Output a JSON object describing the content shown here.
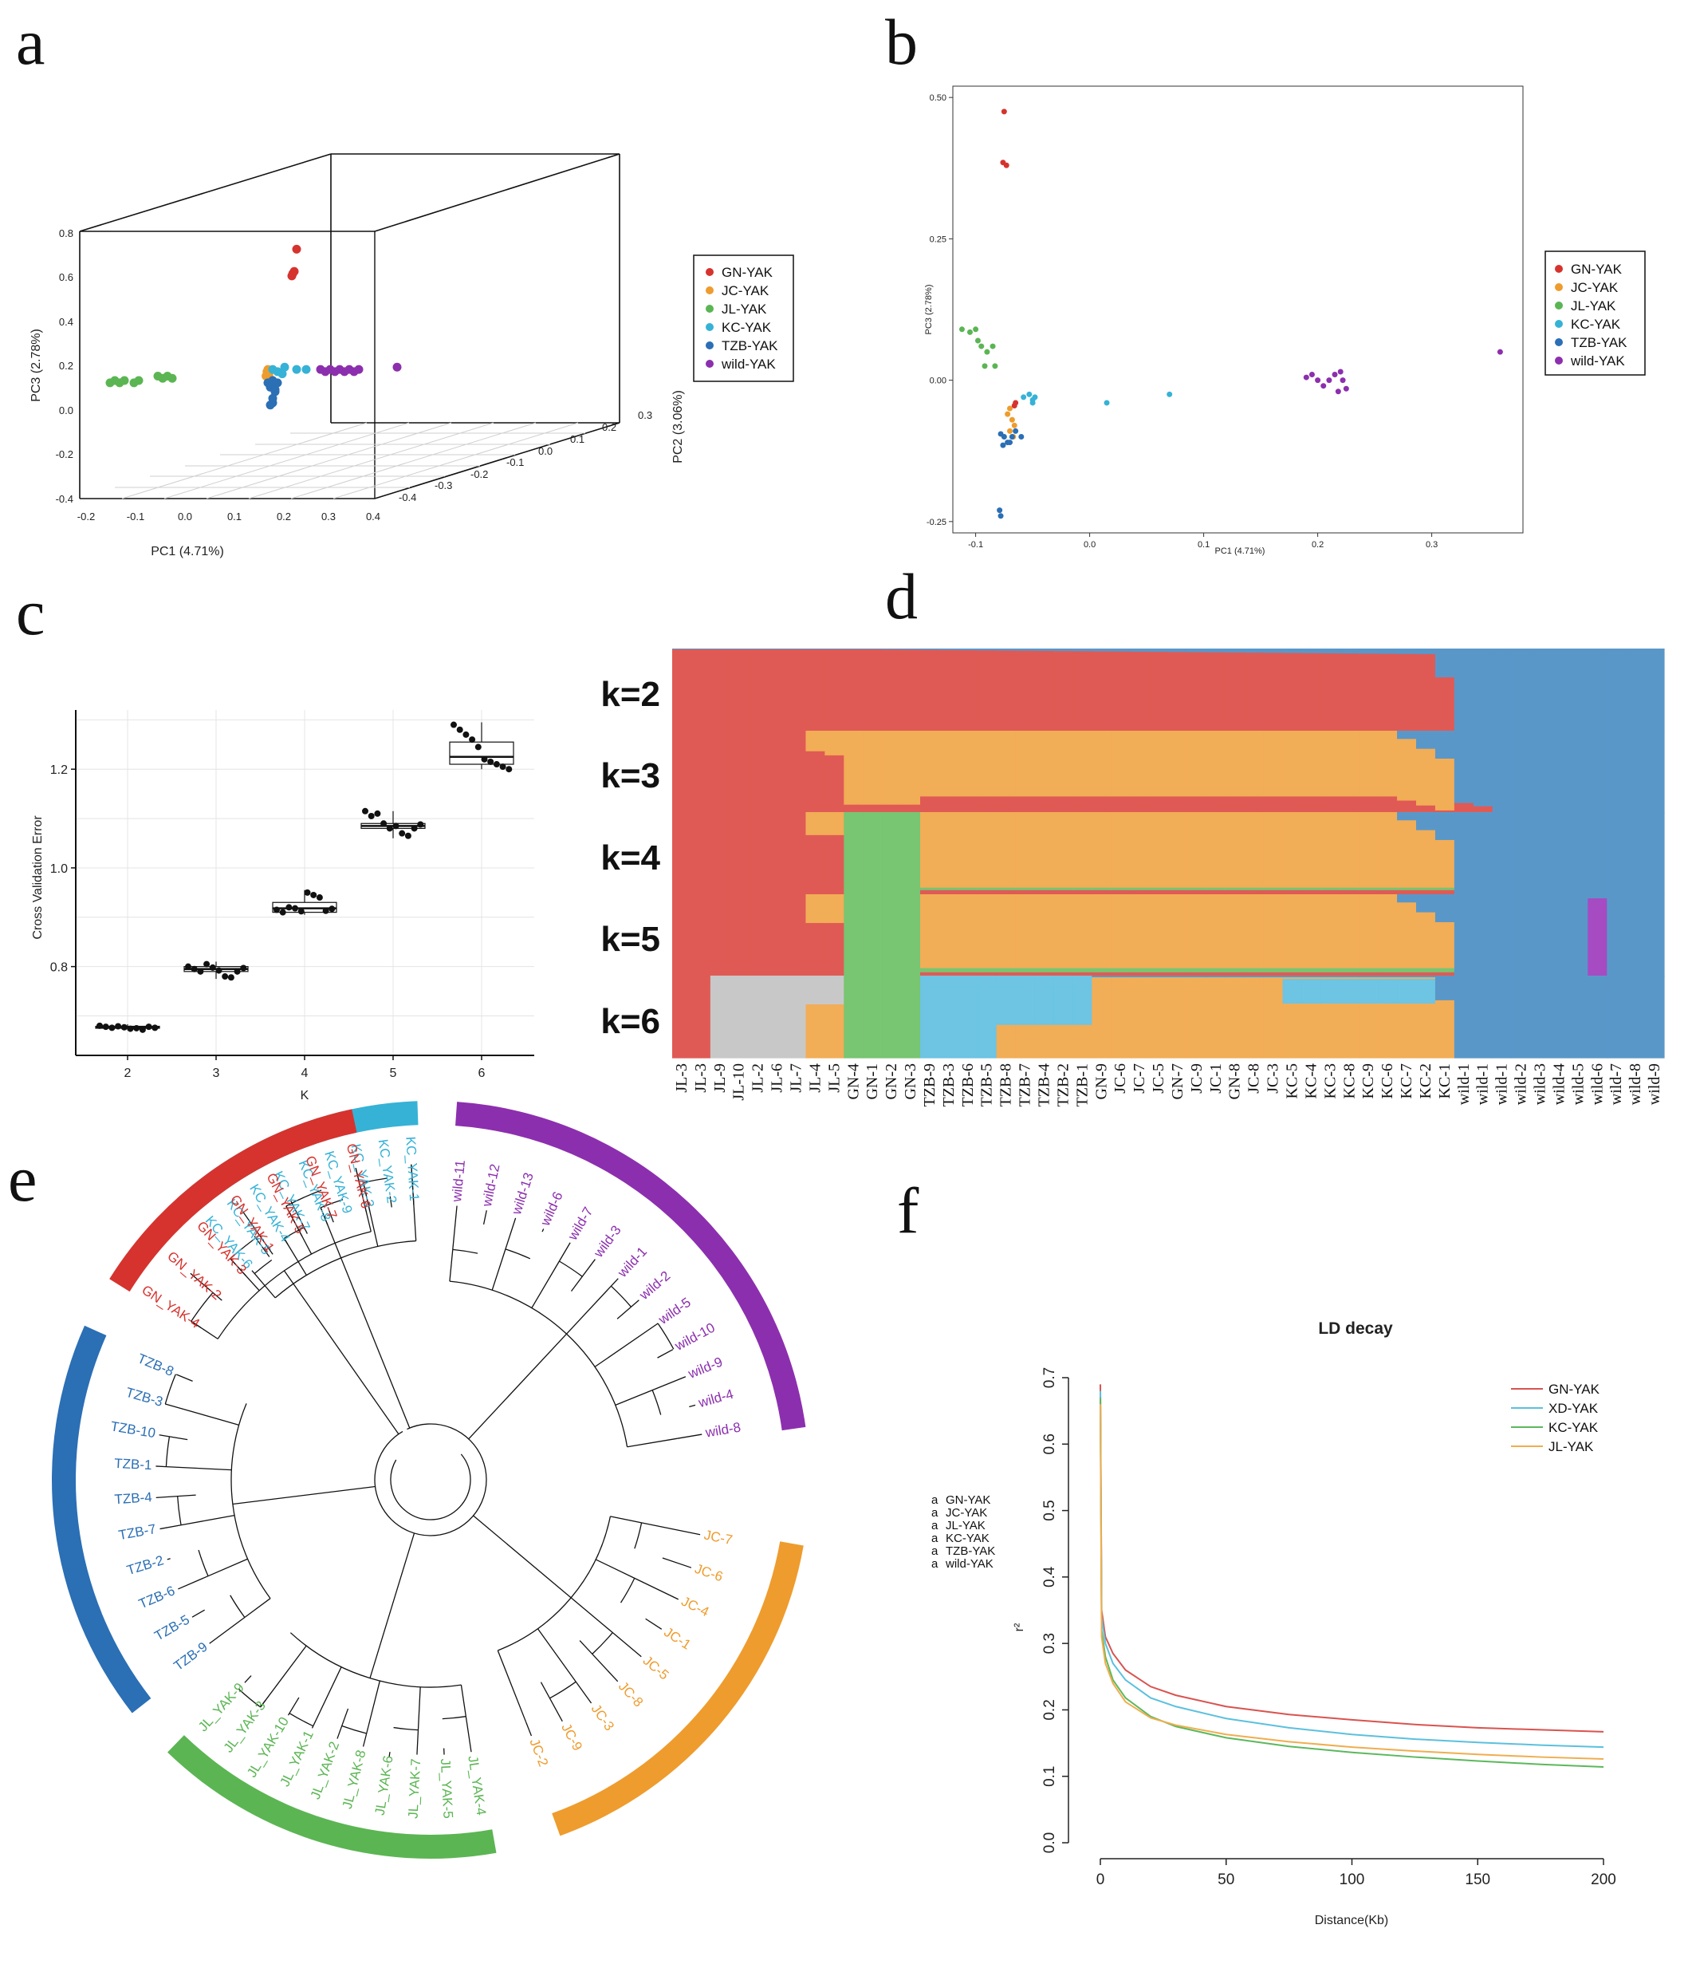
{
  "colors": {
    "GN": "#d6332e",
    "JC": "#ee9c2e",
    "JL": "#5bb553",
    "KC": "#36b2d6",
    "TZB": "#2b6fb5",
    "wild": "#8c2fae",
    "adm_red": "#e05a55",
    "adm_orange": "#f2ad57",
    "adm_blue": "#5a97c9",
    "adm_green": "#78c572",
    "adm_cyan": "#6dc4e3",
    "adm_grey": "#c8c8c8",
    "adm_purple": "#a64bc2"
  },
  "panel_labels": {
    "a": "a",
    "b": "b",
    "c": "c",
    "d": "d",
    "e": "e",
    "f": "f"
  },
  "legend_groups": [
    "GN-YAK",
    "JC-YAK",
    "JL-YAK",
    "KC-YAK",
    "TZB-YAK",
    "wild-YAK"
  ],
  "chart_data": [
    {
      "panel": "a",
      "type": "scatter",
      "title": "",
      "xlabel": "PC1 (4.71%)",
      "ylabel": "PC3 (2.78%)",
      "zlabel": "PC2 (3.06%)",
      "xticks": [
        "-0.2",
        "-0.1",
        "0.0",
        "0.1",
        "0.2",
        "0.3",
        "0.4"
      ],
      "zticks": [
        "-0.4",
        "-0.3",
        "-0.2",
        "-0.1",
        "0.0",
        "0.1",
        "0.2",
        "0.3"
      ],
      "yticks": [
        "-0.4",
        "-0.2",
        "0.0",
        "0.2",
        "0.4",
        "0.6",
        "0.8"
      ],
      "series": [
        {
          "name": "GN-YAK",
          "color_key": "GN",
          "x": [
            0.24,
            0.23,
            0.235,
            0.232
          ],
          "y": [
            0.72,
            0.6,
            0.62,
            0.61
          ]
        },
        {
          "name": "JC-YAK",
          "color_key": "JC",
          "x": [
            0.18,
            0.178,
            0.182,
            0.176,
            0.184
          ],
          "y": [
            0.18,
            0.17,
            0.16,
            0.15,
            0.14
          ]
        },
        {
          "name": "JL-YAK",
          "color_key": "JL",
          "x": [
            -0.15,
            -0.14,
            -0.13,
            -0.12,
            -0.1,
            -0.09,
            -0.05,
            -0.04,
            -0.03,
            -0.02
          ],
          "y": [
            0.12,
            0.13,
            0.12,
            0.13,
            0.12,
            0.13,
            0.15,
            0.14,
            0.15,
            0.14
          ]
        },
        {
          "name": "KC-YAK",
          "color_key": "KC",
          "x": [
            0.19,
            0.2,
            0.21,
            0.215,
            0.24,
            0.26
          ],
          "y": [
            0.18,
            0.17,
            0.16,
            0.19,
            0.18,
            0.18
          ]
        },
        {
          "name": "TZB-YAK",
          "color_key": "TZB",
          "x": [
            0.18,
            0.185,
            0.19,
            0.195,
            0.19,
            0.185,
            0.2,
            0.19,
            0.195,
            0.19
          ],
          "y": [
            0.12,
            0.1,
            0.11,
            0.09,
            0.03,
            0.02,
            0.12,
            0.13,
            0.08,
            0.05
          ]
        },
        {
          "name": "wild-YAK",
          "color_key": "wild",
          "x": [
            0.29,
            0.3,
            0.31,
            0.32,
            0.33,
            0.34,
            0.35,
            0.36,
            0.37,
            0.45
          ],
          "y": [
            0.18,
            0.17,
            0.18,
            0.17,
            0.18,
            0.17,
            0.18,
            0.17,
            0.18,
            0.19
          ]
        }
      ]
    },
    {
      "panel": "b",
      "type": "scatter",
      "title": "",
      "xlabel": "PC1 (4.71%)",
      "ylabel": "PC3 (2.78%)",
      "xlim": [
        -0.12,
        0.38
      ],
      "ylim": [
        -0.27,
        0.52
      ],
      "xticks": [
        -0.1,
        0.0,
        0.1,
        0.2,
        0.3
      ],
      "xtick_labels": [
        "-0.1",
        "0.0",
        "0.1",
        "0.2",
        "0.3"
      ],
      "yticks": [
        -0.25,
        0.0,
        0.25,
        0.5
      ],
      "ytick_labels": [
        "-0.25",
        "0.00",
        "0.25",
        "0.50"
      ],
      "series": [
        {
          "name": "GN-YAK",
          "color_key": "GN",
          "x": [
            -0.075,
            -0.076,
            -0.073,
            -0.065,
            -0.066
          ],
          "y": [
            0.475,
            0.385,
            0.38,
            -0.04,
            -0.045
          ]
        },
        {
          "name": "JC-YAK",
          "color_key": "JC",
          "x": [
            -0.07,
            -0.072,
            -0.068,
            -0.066,
            -0.07,
            -0.067
          ],
          "y": [
            -0.05,
            -0.06,
            -0.07,
            -0.08,
            -0.09,
            -0.1
          ]
        },
        {
          "name": "JL-YAK",
          "color_key": "JL",
          "x": [
            -0.112,
            -0.105,
            -0.1,
            -0.098,
            -0.095,
            -0.09,
            -0.085,
            -0.092,
            -0.083
          ],
          "y": [
            0.09,
            0.085,
            0.09,
            0.07,
            0.06,
            0.05,
            0.06,
            0.025,
            0.025
          ]
        },
        {
          "name": "KC-YAK",
          "color_key": "KC",
          "x": [
            -0.058,
            -0.053,
            -0.05,
            -0.048,
            -0.05,
            0.015,
            0.07
          ],
          "y": [
            -0.03,
            -0.025,
            -0.035,
            -0.03,
            -0.04,
            -0.04,
            -0.025
          ]
        },
        {
          "name": "TZB-YAK",
          "color_key": "TZB",
          "x": [
            -0.078,
            -0.075,
            -0.072,
            -0.068,
            -0.065,
            -0.06,
            -0.07,
            -0.076,
            -0.079,
            -0.078
          ],
          "y": [
            -0.095,
            -0.1,
            -0.11,
            -0.1,
            -0.09,
            -0.1,
            -0.11,
            -0.115,
            -0.23,
            -0.24
          ]
        },
        {
          "name": "wild-YAK",
          "color_key": "wild",
          "x": [
            0.19,
            0.195,
            0.205,
            0.21,
            0.215,
            0.22,
            0.222,
            0.218,
            0.225,
            0.2,
            0.36
          ],
          "y": [
            0.005,
            0.01,
            -0.01,
            0.0,
            0.01,
            0.015,
            0.0,
            -0.02,
            -0.015,
            0.0,
            0.05
          ]
        }
      ]
    },
    {
      "panel": "c",
      "type": "box",
      "title": "",
      "xlabel": "K",
      "ylabel": "Cross Validation Error",
      "categories": [
        "2",
        "3",
        "4",
        "5",
        "6"
      ],
      "ylim": [
        0.62,
        1.32
      ],
      "yticks": [
        0.8,
        1.0,
        1.2
      ],
      "ytick_labels": [
        "0.8",
        "1.0",
        "1.2"
      ],
      "boxes": [
        {
          "k": "2",
          "q1": 0.675,
          "median": 0.677,
          "q3": 0.679,
          "whisker_low": 0.671,
          "whisker_high": 0.683,
          "points": [
            0.68,
            0.678,
            0.676,
            0.679,
            0.677,
            0.674,
            0.675,
            0.672,
            0.678,
            0.676
          ]
        },
        {
          "k": "3",
          "q1": 0.79,
          "median": 0.795,
          "q3": 0.8,
          "whisker_low": 0.775,
          "whisker_high": 0.81,
          "points": [
            0.8,
            0.795,
            0.79,
            0.805,
            0.798,
            0.792,
            0.78,
            0.778,
            0.79,
            0.797
          ]
        },
        {
          "k": "4",
          "q1": 0.91,
          "median": 0.918,
          "q3": 0.93,
          "whisker_low": 0.905,
          "whisker_high": 0.955,
          "points": [
            0.915,
            0.91,
            0.92,
            0.918,
            0.912,
            0.95,
            0.945,
            0.94,
            0.913,
            0.917
          ]
        },
        {
          "k": "5",
          "q1": 1.08,
          "median": 1.085,
          "q3": 1.09,
          "whisker_low": 1.06,
          "whisker_high": 1.115,
          "points": [
            1.115,
            1.105,
            1.11,
            1.09,
            1.08,
            1.085,
            1.07,
            1.065,
            1.08,
            1.088
          ]
        },
        {
          "k": "6",
          "q1": 1.21,
          "median": 1.225,
          "q3": 1.255,
          "whisker_low": 1.2,
          "whisker_high": 1.295,
          "points": [
            1.29,
            1.28,
            1.27,
            1.26,
            1.245,
            1.22,
            1.215,
            1.21,
            1.205,
            1.2
          ]
        }
      ]
    },
    {
      "panel": "d",
      "type": "admixture",
      "title": "",
      "k_labels": [
        "k=2",
        "k=3",
        "k=4",
        "k=5",
        "k=6"
      ],
      "samples": [
        "JL-3",
        "JL-3",
        "JL-9",
        "JL-10",
        "JL-2",
        "JL-6",
        "JL-7",
        "JL-4",
        "JL-5",
        "GN-4",
        "GN-1",
        "GN-2",
        "GN-3",
        "TZB-9",
        "TZB-3",
        "TZB-6",
        "TZB-5",
        "TZB-8",
        "TZB-7",
        "TZB-4",
        "TZB-2",
        "TZB-1",
        "GN-9",
        "JC-6",
        "JC-7",
        "JC-5",
        "GN-7",
        "JC-9",
        "JC-1",
        "GN-8",
        "JC-8",
        "JC-3",
        "KC-5",
        "KC-4",
        "KC-3",
        "KC-8",
        "KC-9",
        "KC-6",
        "KC-7",
        "KC-2",
        "KC-1",
        "wild-1",
        "wild-1",
        "wild-1",
        "wild-2",
        "wild-3",
        "wild-4",
        "wild-5",
        "wild-6",
        "wild-7",
        "wild-8",
        "wild-9"
      ]
    },
    {
      "panel": "e",
      "type": "tree",
      "title": "",
      "clades": [
        {
          "name": "KC",
          "color_key": "KC",
          "tips": [
            "KC_YAK-6",
            "KC_YAK-5",
            "KC_YAK-4",
            "KC_YAK-7",
            "KC_YAK-8",
            "KC_YAK-9",
            "KC_YAK-3",
            "KC_YAK-2",
            "KC_YAK-1"
          ]
        },
        {
          "name": "wild",
          "color_key": "wild",
          "tips": [
            "wild-11",
            "wild-12",
            "wild-13",
            "wild-6",
            "wild-7",
            "wild-3",
            "wild-1",
            "wild-2",
            "wild-5",
            "wild-10",
            "wild-9",
            "wild-4",
            "wild-8"
          ]
        },
        {
          "name": "JC",
          "color_key": "JC",
          "tips": [
            "JC-7",
            "JC-6",
            "JC-4",
            "JC-1",
            "JC-5",
            "JC-8",
            "JC-3",
            "JC-9",
            "JC-2"
          ]
        },
        {
          "name": "JL",
          "color_key": "JL",
          "tips": [
            "JL_YAK-4",
            "JL_YAK-5",
            "JL_YAK-7",
            "JL_YAK-6",
            "JL_YAK-8",
            "JL_YAK-2",
            "JL_YAK-1",
            "JL_YAK-10",
            "JL_YAK-3",
            "JL_YAK-9"
          ]
        },
        {
          "name": "TZB",
          "color_key": "TZB",
          "tips": [
            "TZB-9",
            "TZB-5",
            "TZB-6",
            "TZB-2",
            "TZB-7",
            "TZB-4",
            "TZB-1",
            "TZB-10",
            "TZB-3",
            "TZB-8"
          ]
        },
        {
          "name": "GN",
          "color_key": "GN",
          "tips": [
            "GN_YAK-4",
            "GN_YAK-2",
            "GN_YAK-3",
            "GN_YAK-1",
            "GN_YAK-5",
            "GN_YAK-7",
            "GN_YAK-6"
          ]
        }
      ]
    },
    {
      "panel": "f",
      "type": "line",
      "title": "LD decay",
      "xlabel": "Distance(Kb)",
      "ylabel": "r²",
      "xlim": [
        0,
        200
      ],
      "ylim": [
        0,
        0.7
      ],
      "xticks": [
        0,
        50,
        100,
        150,
        200
      ],
      "yticks": [
        0.0,
        0.1,
        0.2,
        0.3,
        0.4,
        0.5,
        0.6,
        0.7
      ],
      "ytick_labels": [
        "0.0",
        "0.1",
        "0.2",
        "0.3",
        "0.4",
        "0.5",
        "0.6",
        "0.7"
      ],
      "series": [
        {
          "name": "GN-YAK",
          "color": "#d9534f",
          "x": [
            0,
            0.5,
            2,
            5,
            10,
            20,
            30,
            50,
            75,
            100,
            125,
            150,
            175,
            200
          ],
          "y": [
            0.69,
            0.35,
            0.31,
            0.285,
            0.26,
            0.235,
            0.222,
            0.205,
            0.193,
            0.185,
            0.178,
            0.173,
            0.17,
            0.167
          ]
        },
        {
          "name": "XD-YAK",
          "color": "#5bc0de",
          "x": [
            0,
            0.5,
            2,
            5,
            10,
            20,
            30,
            50,
            75,
            100,
            125,
            150,
            175,
            200
          ],
          "y": [
            0.68,
            0.34,
            0.3,
            0.27,
            0.245,
            0.218,
            0.205,
            0.187,
            0.173,
            0.163,
            0.156,
            0.151,
            0.147,
            0.144
          ]
        },
        {
          "name": "KC-YAK",
          "color": "#5cb85c",
          "x": [
            0,
            0.5,
            2,
            5,
            10,
            20,
            30,
            50,
            75,
            100,
            125,
            150,
            175,
            200
          ],
          "y": [
            0.67,
            0.32,
            0.28,
            0.245,
            0.218,
            0.19,
            0.175,
            0.158,
            0.145,
            0.136,
            0.129,
            0.123,
            0.118,
            0.114
          ]
        },
        {
          "name": "JL-YAK",
          "color": "#f0ad4e",
          "x": [
            0,
            0.5,
            2,
            5,
            10,
            20,
            30,
            50,
            75,
            100,
            125,
            150,
            175,
            200
          ],
          "y": [
            0.66,
            0.31,
            0.27,
            0.24,
            0.212,
            0.188,
            0.177,
            0.163,
            0.152,
            0.144,
            0.138,
            0.133,
            0.129,
            0.126
          ]
        }
      ],
      "group_legend": [
        "GN-YAK",
        "JC-YAK",
        "JL-YAK",
        "KC-YAK",
        "TZB-YAK",
        "wild-YAK"
      ]
    }
  ]
}
